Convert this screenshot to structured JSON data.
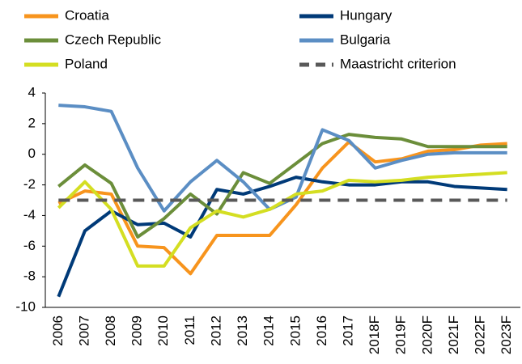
{
  "chart_data": {
    "type": "line",
    "categories": [
      "2006",
      "2007",
      "2008",
      "2009",
      "2010",
      "2011",
      "2012",
      "2013",
      "2014",
      "2015",
      "2016",
      "2017",
      "2018F",
      "2019F",
      "2020F",
      "2021F",
      "2022F",
      "2023F"
    ],
    "series": [
      {
        "name": "Croatia",
        "color": "#f7941d",
        "values": [
          -3.2,
          -2.4,
          -2.6,
          -6.0,
          -6.1,
          -7.8,
          -5.3,
          -5.3,
          -5.3,
          -3.3,
          -0.9,
          0.8,
          -0.5,
          -0.3,
          0.2,
          0.3,
          0.6,
          0.7
        ]
      },
      {
        "name": "Hungary",
        "color": "#003a78",
        "values": [
          -9.3,
          -5.0,
          -3.7,
          -4.6,
          -4.5,
          -5.4,
          -2.3,
          -2.6,
          -2.1,
          -1.5,
          -1.8,
          -2.0,
          -2.0,
          -1.8,
          -1.8,
          -2.1,
          -2.2,
          -2.3
        ]
      },
      {
        "name": "Czech Republic",
        "color": "#6b8e3a",
        "values": [
          -2.1,
          -0.7,
          -1.9,
          -5.4,
          -4.2,
          -2.6,
          -3.9,
          -1.2,
          -1.9,
          -0.6,
          0.7,
          1.3,
          1.1,
          1.0,
          0.5,
          0.5,
          0.5,
          0.5
        ]
      },
      {
        "name": "Bulgaria",
        "color": "#5b8ec4",
        "values": [
          3.2,
          3.1,
          2.8,
          -0.9,
          -3.7,
          -1.8,
          -0.4,
          -1.8,
          -3.6,
          -2.8,
          1.6,
          0.9,
          -0.9,
          -0.4,
          0.0,
          0.1,
          0.1,
          0.1
        ]
      },
      {
        "name": "Poland",
        "color": "#d4de22",
        "values": [
          -3.5,
          -1.8,
          -3.6,
          -7.3,
          -7.3,
          -4.8,
          -3.7,
          -4.1,
          -3.6,
          -2.6,
          -2.4,
          -1.7,
          -1.8,
          -1.7,
          -1.5,
          -1.4,
          -1.3,
          -1.2
        ]
      },
      {
        "name": "Maastricht criterion",
        "color": "#595959",
        "style": "dashed",
        "values": [
          -3,
          -3,
          -3,
          -3,
          -3,
          -3,
          -3,
          -3,
          -3,
          -3,
          -3,
          -3,
          -3,
          -3,
          -3,
          -3,
          -3,
          -3
        ]
      }
    ],
    "ylim": [
      -10,
      4
    ],
    "yticks": [
      -10,
      -8,
      -6,
      -4,
      -2,
      0,
      2,
      4
    ],
    "grid": false,
    "legend": "top"
  }
}
